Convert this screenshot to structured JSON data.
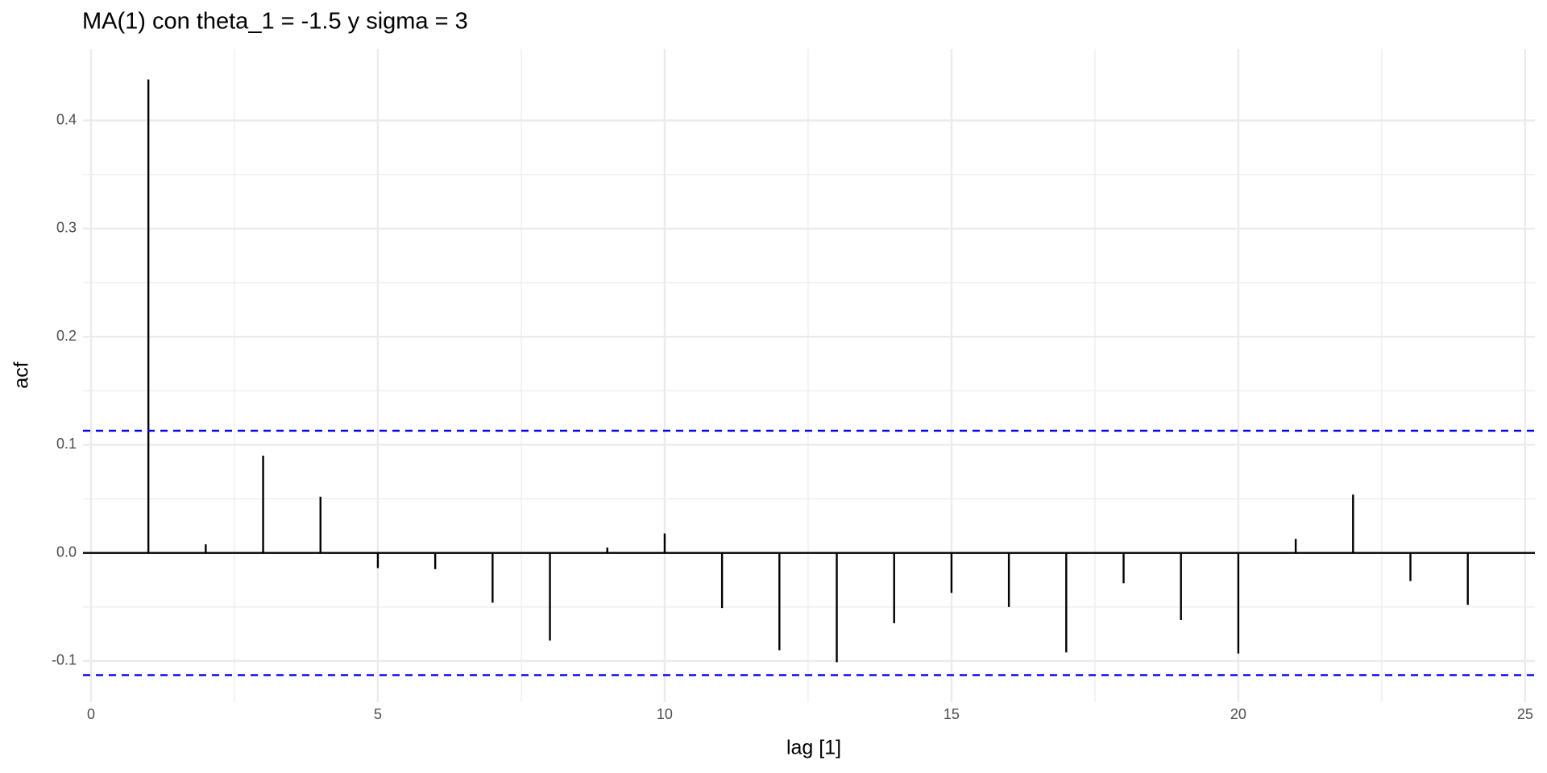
{
  "chart_data": {
    "type": "acf",
    "title": "MA(1) con theta_1 = -1.5 y sigma = 3",
    "x_label": "lag [1]",
    "y_label": "acf",
    "x": [
      1,
      2,
      3,
      4,
      5,
      6,
      7,
      8,
      9,
      10,
      11,
      12,
      13,
      14,
      15,
      16,
      17,
      18,
      19,
      20,
      21,
      22,
      23,
      24
    ],
    "values": [
      0.438,
      0.008,
      0.09,
      0.052,
      -0.014,
      -0.015,
      -0.046,
      -0.081,
      0.005,
      0.018,
      -0.051,
      -0.09,
      -0.101,
      -0.065,
      -0.037,
      -0.05,
      -0.092,
      -0.028,
      -0.062,
      -0.093,
      0.013,
      0.054,
      -0.026,
      -0.048
    ],
    "color": "#000000",
    "confidence_bounds": [
      -0.113,
      0.113
    ],
    "confidence_color": "#0000ff",
    "xlim": [
      -0.14,
      25.17
    ],
    "ylim": [
      -0.138,
      0.466
    ],
    "xticks": [
      0,
      5,
      10,
      15,
      20,
      25
    ],
    "yticks": [
      -0.1,
      {
        "value": 0,
        "label": "0.0"
      },
      0.1,
      0.2,
      0.3,
      0.4
    ],
    "grid": true
  }
}
